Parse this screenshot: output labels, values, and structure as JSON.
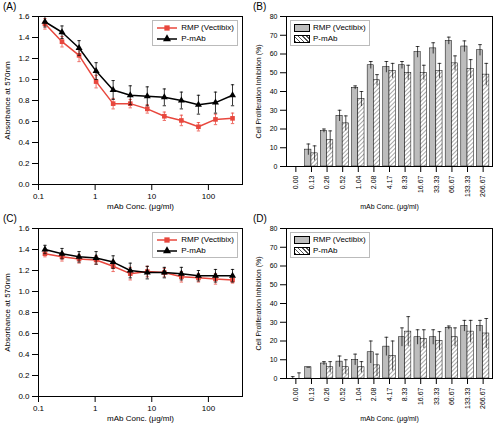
{
  "chart_data": [
    {
      "type": "line",
      "title": "(A)",
      "x_label": "mAb Conc. (μg/ml)",
      "y_label": "Absorbance at 570nm",
      "x": [
        0.13,
        0.26,
        0.52,
        1.04,
        2.08,
        4.17,
        8.33,
        16.67,
        33.33,
        66.67,
        133.33,
        266.67
      ],
      "log": "x",
      "xlim": [
        0.1,
        400
      ],
      "xticks": [
        0.1,
        1,
        10,
        100
      ],
      "ylim": [
        0,
        1.6
      ],
      "yticks": [
        {
          "value": 0,
          "label": "0.0"
        },
        {
          "value": 0.2,
          "label": "0.2"
        },
        {
          "value": 0.4,
          "label": "0.4"
        },
        {
          "value": 0.6,
          "label": "0.6"
        },
        {
          "value": 0.8,
          "label": "0.8"
        },
        {
          "value": 1,
          "label": "1.0"
        },
        {
          "value": 1.2,
          "label": "1.2"
        },
        {
          "value": 1.4,
          "label": "1.4"
        },
        {
          "value": 1.6,
          "label": "1.6"
        }
      ],
      "grid": false,
      "legend": "upper right",
      "series": [
        {
          "name": "RMP (Vectibix)",
          "color": "#e8473d",
          "marker": "square",
          "values": [
            1.53,
            1.36,
            1.23,
            0.98,
            0.77,
            0.77,
            0.72,
            0.65,
            0.61,
            0.55,
            0.62,
            0.63
          ],
          "errors": [
            0.05,
            0.05,
            0.06,
            0.06,
            0.05,
            0.04,
            0.04,
            0.04,
            0.05,
            0.04,
            0.05,
            0.05
          ]
        },
        {
          "name": "P-mAb",
          "color": "#000000",
          "marker": "triangle",
          "values": [
            1.55,
            1.45,
            1.3,
            1.08,
            0.9,
            0.85,
            0.84,
            0.83,
            0.8,
            0.76,
            0.78,
            0.85
          ],
          "errors": [
            0.05,
            0.06,
            0.07,
            0.08,
            0.09,
            0.09,
            0.09,
            0.08,
            0.08,
            0.09,
            0.1,
            0.1
          ]
        }
      ]
    },
    {
      "type": "bar",
      "title": "(B)",
      "x_label": "mAb Conc. (μg/ml)",
      "y_label": "Cell Proliferation Inhibition (%)",
      "categories": [
        "0.00",
        "0.13",
        "0.26",
        "0.52",
        "1.04",
        "2.08",
        "4.17",
        "8.33",
        "16.67",
        "33.33",
        "66.67",
        "133.33",
        "266.67"
      ],
      "ylim": [
        0,
        80
      ],
      "yticks": [
        0,
        10,
        20,
        30,
        40,
        50,
        60,
        70,
        80
      ],
      "grid": false,
      "legend": "upper left",
      "series": [
        {
          "name": "RMP (Vectibix)",
          "color": "#bdbdbd",
          "values": [
            0,
            9,
            19,
            27,
            42,
            54,
            53,
            54,
            61,
            63,
            67,
            64,
            62
          ],
          "errors": [
            0,
            3,
            1,
            3,
            1,
            2,
            3,
            2,
            3,
            3,
            2,
            3,
            3
          ]
        },
        {
          "name": "P-mAb",
          "color": "#555555",
          "values": [
            0,
            7,
            14,
            23,
            36,
            46,
            51,
            50,
            50,
            51,
            55,
            52,
            49
          ],
          "errors": [
            0,
            4,
            5,
            4,
            4,
            3,
            4,
            4,
            4,
            4,
            4,
            5,
            6
          ]
        }
      ]
    },
    {
      "type": "line",
      "title": "(C)",
      "x_label": "mAb Conc. (μg/ml)",
      "y_label": "Absorbance at 570nm",
      "x": [
        0.13,
        0.26,
        0.52,
        1.04,
        2.08,
        4.17,
        8.33,
        16.67,
        33.33,
        66.67,
        133.33,
        266.67
      ],
      "log": "x",
      "xlim": [
        0.1,
        400
      ],
      "xticks": [
        0.1,
        1,
        10,
        100
      ],
      "ylim": [
        0,
        1.6
      ],
      "yticks": [
        {
          "value": 0,
          "label": "0.0"
        },
        {
          "value": 0.2,
          "label": "0.2"
        },
        {
          "value": 0.4,
          "label": "0.4"
        },
        {
          "value": 0.6,
          "label": "0.6"
        },
        {
          "value": 0.8,
          "label": "0.8"
        },
        {
          "value": 1,
          "label": "1.0"
        },
        {
          "value": 1.2,
          "label": "1.2"
        },
        {
          "value": 1.4,
          "label": "1.4"
        },
        {
          "value": 1.6,
          "label": "1.6"
        }
      ],
      "grid": false,
      "legend": "upper right",
      "series": [
        {
          "name": "RMP (Vectibix)",
          "color": "#e8473d",
          "marker": "square",
          "values": [
            1.36,
            1.33,
            1.31,
            1.3,
            1.24,
            1.17,
            1.19,
            1.18,
            1.14,
            1.13,
            1.12,
            1.11
          ],
          "errors": [
            0.03,
            0.04,
            0.04,
            0.04,
            0.05,
            0.06,
            0.05,
            0.04,
            0.05,
            0.04,
            0.05,
            0.03
          ]
        },
        {
          "name": "P-mAb",
          "color": "#000000",
          "marker": "triangle",
          "values": [
            1.4,
            1.36,
            1.33,
            1.32,
            1.28,
            1.2,
            1.18,
            1.18,
            1.17,
            1.15,
            1.15,
            1.15
          ],
          "errors": [
            0.04,
            0.05,
            0.05,
            0.06,
            0.06,
            0.07,
            0.06,
            0.05,
            0.06,
            0.05,
            0.06,
            0.06
          ]
        }
      ]
    },
    {
      "type": "bar",
      "title": "(D)",
      "x_label": "mAb Conc. (μg/ml)",
      "y_label": "Cell Proliferation Inhibition (%)",
      "categories": [
        "0.00",
        "0.13",
        "0.26",
        "0.52",
        "1.04",
        "2.08",
        "4.17",
        "8.33",
        "16.67",
        "33.33",
        "66.67",
        "133.33",
        "266.67"
      ],
      "ylim": [
        0,
        80
      ],
      "yticks": [
        0,
        10,
        20,
        30,
        40,
        50,
        60,
        70,
        80
      ],
      "grid": false,
      "legend": "upper left",
      "series": [
        {
          "name": "RMP (Vectibix)",
          "color": "#bdbdbd",
          "values": [
            0,
            6,
            8,
            9,
            10,
            14,
            17,
            22,
            22,
            22,
            27,
            28,
            28
          ],
          "errors": [
            1,
            0,
            1,
            3,
            3,
            6,
            5,
            5,
            4,
            4,
            1,
            3,
            3
          ]
        },
        {
          "name": "P-mAb",
          "color": "#555555",
          "values": [
            0,
            0,
            6,
            6,
            6,
            7,
            12,
            25,
            21,
            20,
            22,
            25,
            24
          ],
          "errors": [
            3,
            0,
            3,
            4,
            3,
            6,
            8,
            8,
            5,
            5,
            5,
            6,
            8
          ]
        }
      ]
    }
  ]
}
